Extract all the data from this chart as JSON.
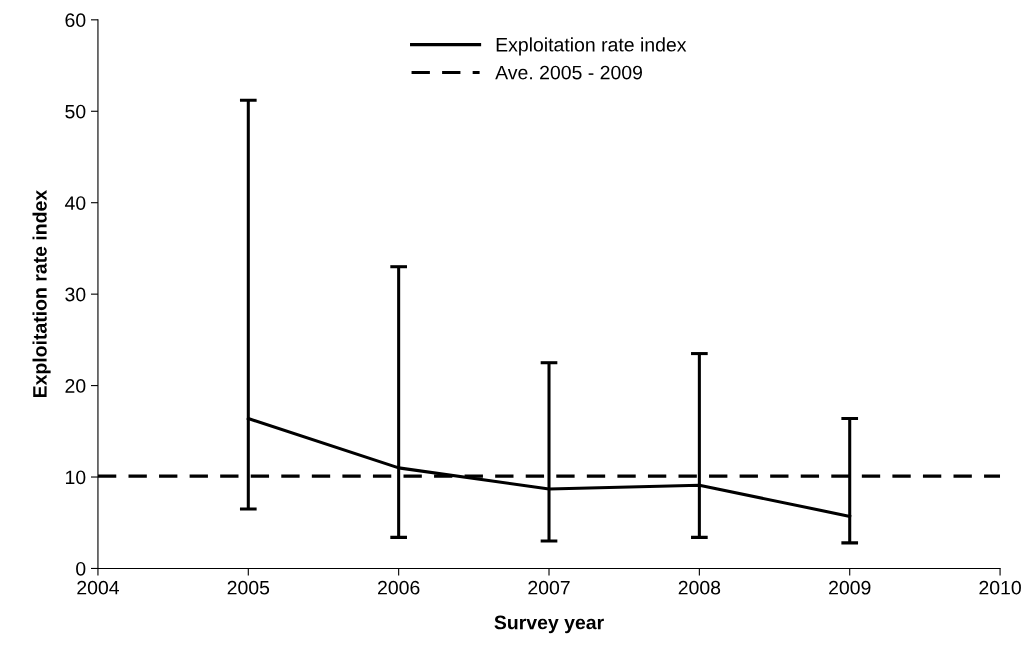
{
  "chart_data": {
    "type": "line",
    "xlabel": "Survey year",
    "ylabel": "Exploitation rate index",
    "x": [
      2005,
      2006,
      2007,
      2008,
      2009
    ],
    "series": [
      {
        "name": "Exploitation rate index",
        "color": "#000000",
        "values": [
          16.4,
          11.0,
          8.7,
          9.1,
          5.7
        ],
        "errors": [
          [
            6.5,
            51.2
          ],
          [
            3.4,
            33.0
          ],
          [
            3.0,
            22.5
          ],
          [
            3.4,
            23.5
          ],
          [
            2.8,
            16.4
          ]
        ]
      }
    ],
    "ref_lines": [
      {
        "axis": "y",
        "value": 10.1,
        "label": "Ave. 2005 - 2009",
        "color": "#000000",
        "line_style": "dashed"
      }
    ],
    "xlim": [
      2004,
      2010
    ],
    "xticks": [
      2004,
      2005,
      2006,
      2007,
      2008,
      2009,
      2010
    ],
    "ylim": [
      0,
      60
    ],
    "yticks": [
      0,
      10,
      20,
      30,
      40,
      50,
      60
    ],
    "marker": "none",
    "line_style": "solid",
    "grid": false,
    "legend": "top"
  }
}
